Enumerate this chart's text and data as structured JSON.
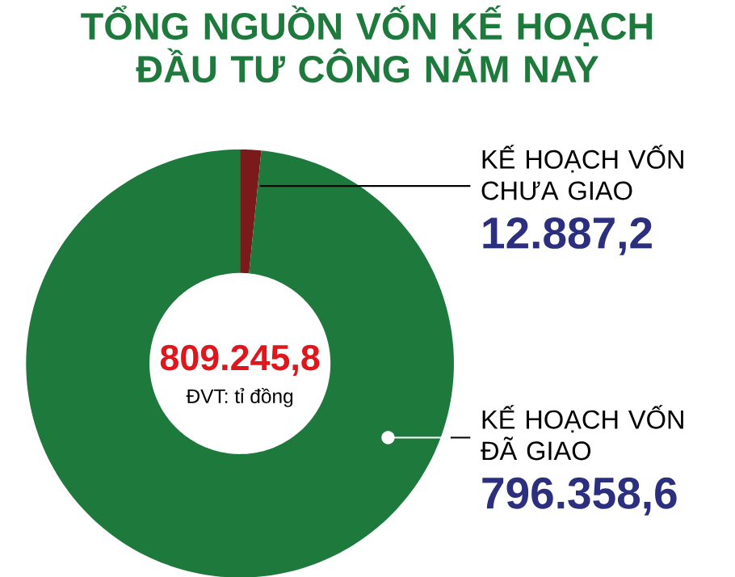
{
  "chart_data": {
    "type": "donut",
    "title": "TỔNG NGUỒN VỐN KẾ HOẠCH ĐẦU TƯ CÔNG NĂM NAY",
    "categories": [
      "KẾ HOẠCH VỐN CHƯA GIAO",
      "KẾ HOẠCH VỐN ĐÃ GIAO"
    ],
    "values": [
      12887.2,
      796358.6
    ],
    "colors": [
      "#7a1a1a",
      "#1e7a3c"
    ],
    "value_labels": [
      "12.887,2",
      "796.358,6"
    ],
    "annotations": [
      "809.245,8",
      "ĐVT: tỉ đồng"
    ]
  }
}
